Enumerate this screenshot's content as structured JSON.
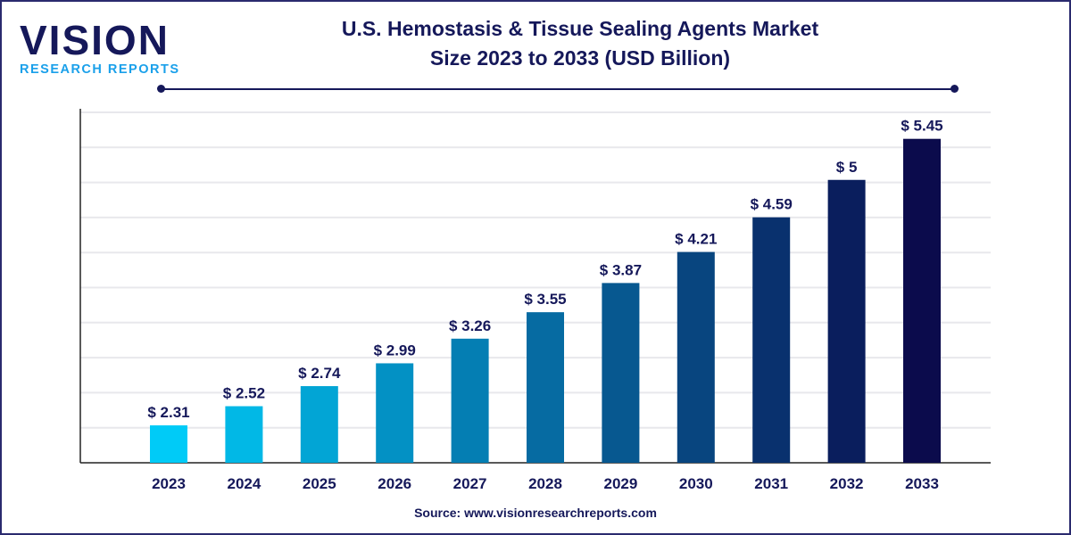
{
  "logo": {
    "main": "VISION",
    "sub": "RESEARCH REPORTS"
  },
  "title_line1": "U.S. Hemostasis & Tissue Sealing Agents Market",
  "title_line2": "Size 2023 to 2033 (USD Billion)",
  "source": "Source: www.visionresearchreports.com",
  "chart_data": {
    "type": "bar",
    "title": "U.S. Hemostasis & Tissue Sealing Agents Market Size 2023 to 2033 (USD Billion)",
    "categories": [
      "2023",
      "2024",
      "2025",
      "2026",
      "2027",
      "2028",
      "2029",
      "2030",
      "2031",
      "2032",
      "2033"
    ],
    "values": [
      2.31,
      2.52,
      2.74,
      2.99,
      3.26,
      3.55,
      3.87,
      4.21,
      4.59,
      5,
      5.45
    ],
    "data_labels": [
      "$ 2.31",
      "$ 2.52",
      "$ 2.74",
      "$ 2.99",
      "$ 3.26",
      "$ 3.55",
      "$ 3.87",
      "$ 4.21",
      "$ 4.59",
      "$ 5",
      "$ 5.45"
    ],
    "xlabel": "",
    "ylabel": "",
    "ylim": [
      1.9,
      5.75
    ],
    "grid": true,
    "colors": {
      "start": "#00cbf7",
      "end": "#0b0b4c"
    }
  }
}
